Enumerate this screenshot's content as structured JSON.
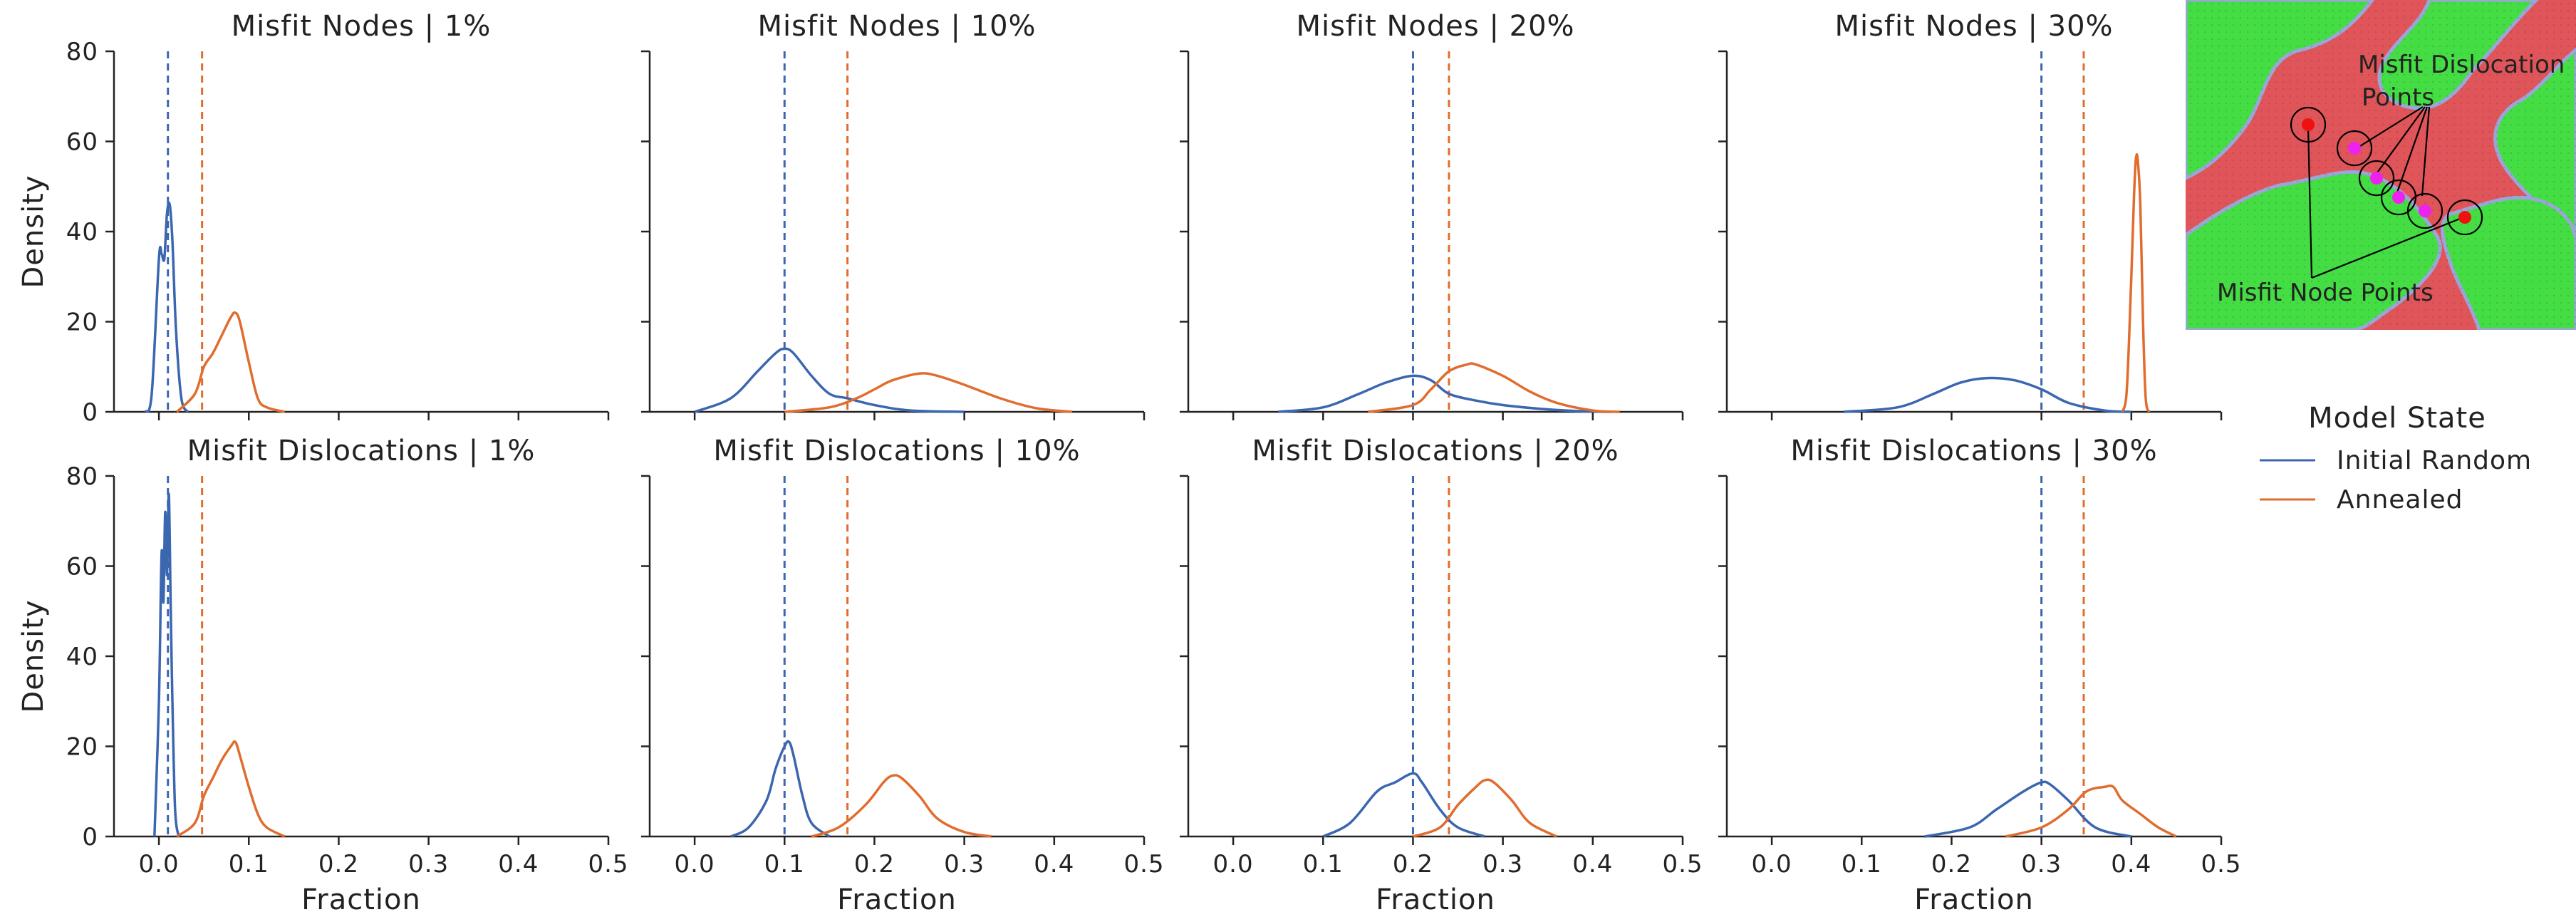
{
  "colors": {
    "initial": "#3b66b0",
    "annealed": "#e06d2e"
  },
  "legend": {
    "title": "Model State",
    "items": [
      {
        "label": "Initial Random",
        "color": "#3b66b0"
      },
      {
        "label": "Annealed",
        "color": "#e06d2e"
      }
    ],
    "placement": "right"
  },
  "inset": {
    "description_labels": [
      "Misfit Dislocation",
      "Points",
      "Misfit Node Points"
    ],
    "colors": {
      "red": "#e0555a",
      "green": "#44dd44",
      "marker_red": "#ee1111",
      "marker_magenta": "#ee22ee"
    }
  },
  "chart_data": [
    {
      "type": "line",
      "row": 0,
      "col": 0,
      "title": "Misfit Nodes | 1%",
      "xlabel": "",
      "ylabel": "Density",
      "xlim": [
        -0.05,
        0.5
      ],
      "ylim": [
        0,
        80
      ],
      "xticks": [
        "0.0",
        "0.1",
        "0.2",
        "0.3",
        "0.4",
        "0.5"
      ],
      "yticks": [
        "0",
        "20",
        "40",
        "60",
        "80"
      ],
      "vlines": [
        {
          "x": 0.01,
          "series": "Initial Random"
        },
        {
          "x": 0.048,
          "series": "Annealed"
        }
      ],
      "series": [
        {
          "name": "Initial Random",
          "x": [
            -0.015,
            -0.008,
            0.0,
            0.003,
            0.006,
            0.009,
            0.012,
            0.015,
            0.019,
            0.025,
            0.032
          ],
          "y": [
            0,
            4,
            34,
            35,
            34,
            44,
            46,
            38,
            18,
            3,
            0
          ]
        },
        {
          "name": "Annealed",
          "x": [
            0.02,
            0.04,
            0.05,
            0.06,
            0.07,
            0.08,
            0.085,
            0.09,
            0.1,
            0.11,
            0.12,
            0.14
          ],
          "y": [
            0,
            4,
            10,
            13,
            17,
            21,
            22,
            20,
            11,
            3,
            1,
            0
          ]
        }
      ]
    },
    {
      "type": "line",
      "row": 0,
      "col": 1,
      "title": "Misfit Nodes | 10%",
      "xlabel": "",
      "ylabel": "",
      "xlim": [
        -0.05,
        0.5
      ],
      "ylim": [
        0,
        80
      ],
      "xticks": [
        "0.0",
        "0.1",
        "0.2",
        "0.3",
        "0.4",
        "0.5"
      ],
      "yticks": [],
      "vlines": [
        {
          "x": 0.1,
          "series": "Initial Random"
        },
        {
          "x": 0.17,
          "series": "Annealed"
        }
      ],
      "series": [
        {
          "name": "Initial Random",
          "x": [
            0.0,
            0.04,
            0.07,
            0.09,
            0.1,
            0.11,
            0.13,
            0.15,
            0.17,
            0.2,
            0.24,
            0.3
          ],
          "y": [
            0,
            3,
            9,
            13,
            14,
            13,
            8,
            4,
            3,
            1.5,
            0.3,
            0
          ]
        },
        {
          "name": "Annealed",
          "x": [
            0.1,
            0.15,
            0.18,
            0.2,
            0.22,
            0.25,
            0.27,
            0.3,
            0.34,
            0.38,
            0.42
          ],
          "y": [
            0,
            1,
            3,
            5,
            7,
            8.5,
            8,
            6,
            3,
            0.8,
            0
          ]
        }
      ]
    },
    {
      "type": "line",
      "row": 0,
      "col": 2,
      "title": "Misfit Nodes | 20%",
      "xlabel": "",
      "ylabel": "",
      "xlim": [
        -0.05,
        0.5
      ],
      "ylim": [
        0,
        80
      ],
      "xticks": [
        "0.0",
        "0.1",
        "0.2",
        "0.3",
        "0.4",
        "0.5"
      ],
      "yticks": [],
      "vlines": [
        {
          "x": 0.2,
          "series": "Initial Random"
        },
        {
          "x": 0.24,
          "series": "Annealed"
        }
      ],
      "series": [
        {
          "name": "Initial Random",
          "x": [
            0.05,
            0.1,
            0.14,
            0.17,
            0.2,
            0.22,
            0.24,
            0.27,
            0.3,
            0.34,
            0.38,
            0.42
          ],
          "y": [
            0,
            1,
            4,
            6.5,
            8,
            7,
            4,
            2.5,
            1.5,
            0.7,
            0.2,
            0
          ]
        },
        {
          "name": "Annealed",
          "x": [
            0.15,
            0.2,
            0.22,
            0.24,
            0.26,
            0.27,
            0.3,
            0.33,
            0.36,
            0.4,
            0.43
          ],
          "y": [
            0,
            1.5,
            5,
            9,
            10.5,
            10.5,
            8,
            4.5,
            2,
            0.3,
            0
          ]
        }
      ]
    },
    {
      "type": "line",
      "row": 0,
      "col": 3,
      "title": "Misfit Nodes | 30%",
      "xlabel": "",
      "ylabel": "",
      "xlim": [
        -0.05,
        0.5
      ],
      "ylim": [
        0,
        80
      ],
      "xticks": [
        "0.0",
        "0.1",
        "0.2",
        "0.3",
        "0.4",
        "0.5"
      ],
      "yticks": [],
      "vlines": [
        {
          "x": 0.3,
          "series": "Initial Random"
        },
        {
          "x": 0.347,
          "series": "Annealed"
        }
      ],
      "series": [
        {
          "name": "Initial Random",
          "x": [
            0.08,
            0.14,
            0.18,
            0.21,
            0.24,
            0.27,
            0.3,
            0.33,
            0.37,
            0.4
          ],
          "y": [
            0,
            1,
            4,
            6.5,
            7.5,
            7,
            5,
            2,
            0.3,
            0
          ]
        },
        {
          "name": "Annealed",
          "x": [
            0.39,
            0.395,
            0.4,
            0.403,
            0.405,
            0.407,
            0.41,
            0.413,
            0.416,
            0.42
          ],
          "y": [
            0,
            5,
            30,
            48,
            56,
            56,
            46,
            20,
            3,
            0
          ]
        }
      ]
    },
    {
      "type": "line",
      "row": 1,
      "col": 0,
      "title": "Misfit Dislocations | 1%",
      "xlabel": "Fraction",
      "ylabel": "Density",
      "xlim": [
        -0.05,
        0.5
      ],
      "ylim": [
        0,
        80
      ],
      "xticks": [
        "0.0",
        "0.1",
        "0.2",
        "0.3",
        "0.4",
        "0.5"
      ],
      "yticks": [
        "0",
        "20",
        "40",
        "60",
        "80"
      ],
      "vlines": [
        {
          "x": 0.01,
          "series": "Initial Random"
        },
        {
          "x": 0.048,
          "series": "Annealed"
        }
      ],
      "series": [
        {
          "name": "Initial Random",
          "x": [
            -0.005,
            0.0,
            0.003,
            0.005,
            0.007,
            0.009,
            0.011,
            0.013,
            0.015,
            0.018,
            0.022
          ],
          "y": [
            0,
            30,
            63,
            52,
            72,
            58,
            76,
            52,
            30,
            6,
            0
          ]
        },
        {
          "name": "Annealed",
          "x": [
            0.02,
            0.04,
            0.05,
            0.06,
            0.07,
            0.08,
            0.085,
            0.09,
            0.1,
            0.11,
            0.12,
            0.14
          ],
          "y": [
            0,
            3,
            9,
            13,
            17,
            20,
            21,
            18,
            11,
            5,
            2,
            0
          ]
        }
      ]
    },
    {
      "type": "line",
      "row": 1,
      "col": 1,
      "title": "Misfit Dislocations | 10%",
      "xlabel": "Fraction",
      "ylabel": "",
      "xlim": [
        -0.05,
        0.5
      ],
      "ylim": [
        0,
        80
      ],
      "xticks": [
        "0.0",
        "0.1",
        "0.2",
        "0.3",
        "0.4",
        "0.5"
      ],
      "yticks": [],
      "vlines": [
        {
          "x": 0.1,
          "series": "Initial Random"
        },
        {
          "x": 0.17,
          "series": "Annealed"
        }
      ],
      "series": [
        {
          "name": "Initial Random",
          "x": [
            0.04,
            0.06,
            0.08,
            0.09,
            0.1,
            0.105,
            0.11,
            0.12,
            0.13,
            0.15
          ],
          "y": [
            0,
            2,
            8,
            15,
            20,
            21,
            18,
            9,
            3,
            0
          ]
        },
        {
          "name": "Annealed",
          "x": [
            0.13,
            0.16,
            0.19,
            0.21,
            0.22,
            0.23,
            0.25,
            0.27,
            0.3,
            0.33
          ],
          "y": [
            0,
            2,
            7,
            12,
            13.5,
            13,
            9,
            4,
            1,
            0
          ]
        }
      ]
    },
    {
      "type": "line",
      "row": 1,
      "col": 2,
      "title": "Misfit Dislocations | 20%",
      "xlabel": "Fraction",
      "ylabel": "",
      "xlim": [
        -0.05,
        0.5
      ],
      "ylim": [
        0,
        80
      ],
      "xticks": [
        "0.0",
        "0.1",
        "0.2",
        "0.3",
        "0.4",
        "0.5"
      ],
      "yticks": [],
      "vlines": [
        {
          "x": 0.2,
          "series": "Initial Random"
        },
        {
          "x": 0.24,
          "series": "Annealed"
        }
      ],
      "series": [
        {
          "name": "Initial Random",
          "x": [
            0.1,
            0.13,
            0.16,
            0.18,
            0.2,
            0.21,
            0.23,
            0.25,
            0.28
          ],
          "y": [
            0,
            3,
            10,
            12,
            14,
            12,
            6,
            2,
            0
          ]
        },
        {
          "name": "Annealed",
          "x": [
            0.2,
            0.23,
            0.25,
            0.27,
            0.28,
            0.29,
            0.31,
            0.33,
            0.36
          ],
          "y": [
            0,
            2,
            7,
            11,
            12.5,
            12,
            8,
            3,
            0
          ]
        }
      ]
    },
    {
      "type": "line",
      "row": 1,
      "col": 3,
      "title": "Misfit Dislocations | 30%",
      "xlabel": "Fraction",
      "ylabel": "",
      "xlim": [
        -0.05,
        0.5
      ],
      "ylim": [
        0,
        80
      ],
      "xticks": [
        "0.0",
        "0.1",
        "0.2",
        "0.3",
        "0.4",
        "0.5"
      ],
      "yticks": [],
      "vlines": [
        {
          "x": 0.3,
          "series": "Initial Random"
        },
        {
          "x": 0.347,
          "series": "Annealed"
        }
      ],
      "series": [
        {
          "name": "Initial Random",
          "x": [
            0.17,
            0.22,
            0.25,
            0.28,
            0.3,
            0.31,
            0.33,
            0.36,
            0.4
          ],
          "y": [
            0,
            2,
            6,
            10,
            12,
            11.5,
            8,
            2,
            0
          ]
        },
        {
          "name": "Annealed",
          "x": [
            0.26,
            0.3,
            0.33,
            0.35,
            0.37,
            0.38,
            0.39,
            0.41,
            0.43,
            0.45
          ],
          "y": [
            0,
            2,
            6,
            10,
            11,
            11,
            8,
            5,
            2,
            0
          ]
        }
      ]
    }
  ]
}
